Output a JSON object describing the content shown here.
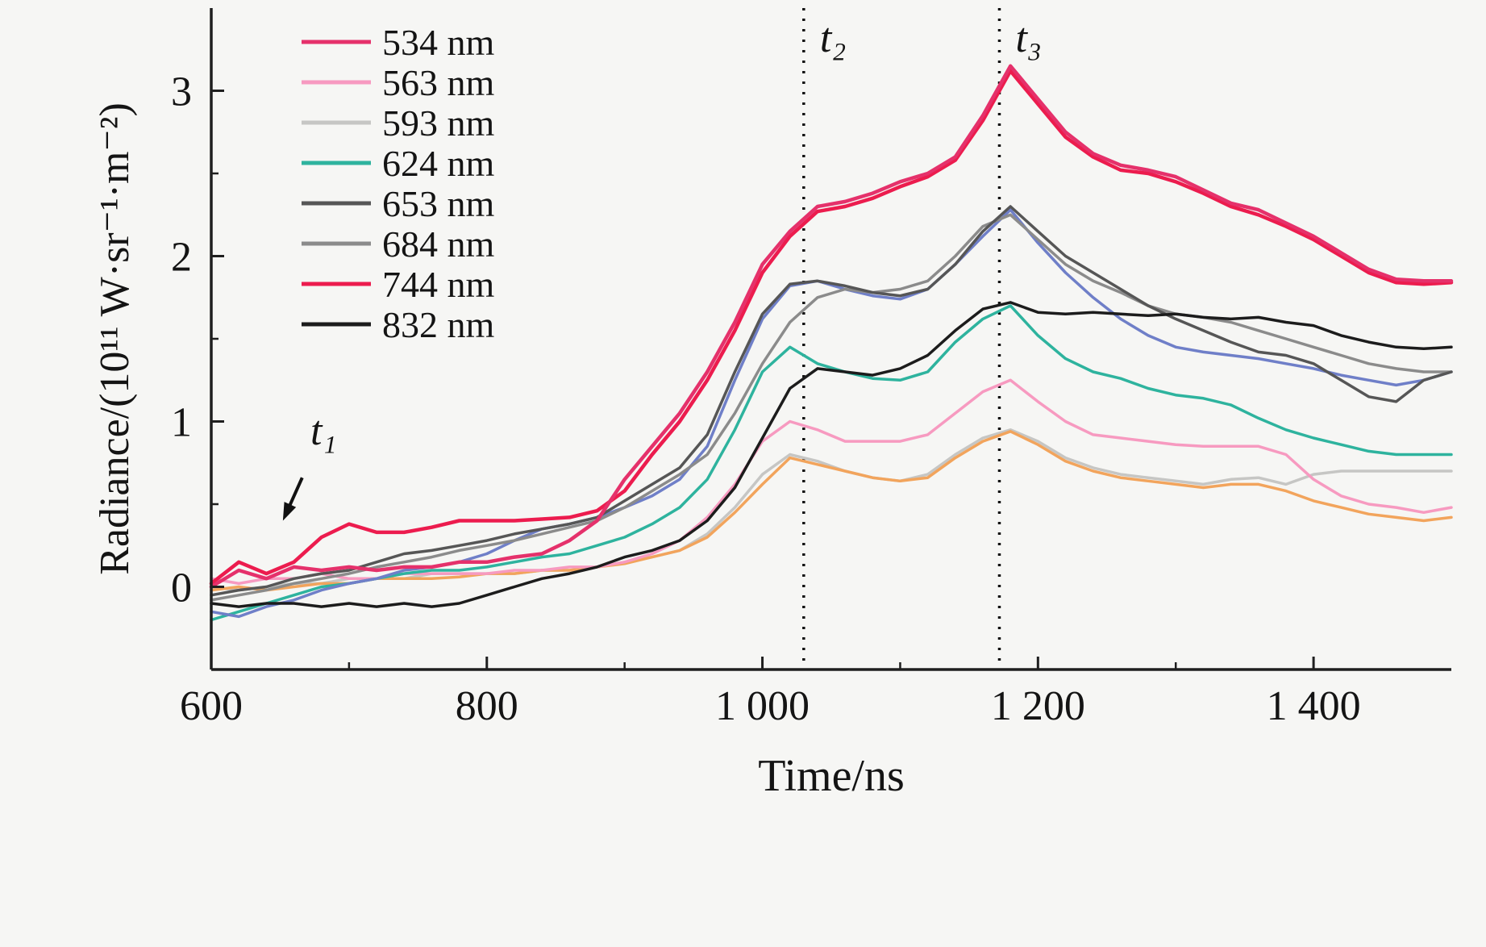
{
  "chart_data": {
    "type": "line",
    "title": "",
    "xlabel": "Time/ns",
    "ylabel": "Radiance/(10¹¹ W·sr⁻¹·m⁻²)",
    "xlim": [
      600,
      1500
    ],
    "ylim": [
      -0.5,
      3.5
    ],
    "grid": false,
    "legend_position": "top-left",
    "background": "#f6f6f4",
    "x_ticks": {
      "major": [
        600,
        800,
        1000,
        1200,
        1400
      ],
      "minor": [
        700,
        900,
        1100,
        1300
      ],
      "labels": [
        "600",
        "800",
        "1 000",
        "1 200",
        "1 400"
      ]
    },
    "y_ticks": {
      "major": [
        0,
        1,
        2,
        3
      ],
      "minor": [
        0.5,
        1.5,
        2.5
      ],
      "labels": [
        "0",
        "1",
        "2",
        "3"
      ]
    },
    "x": [
      600,
      620,
      640,
      660,
      680,
      700,
      720,
      740,
      760,
      780,
      800,
      820,
      840,
      860,
      880,
      900,
      920,
      940,
      960,
      980,
      1000,
      1020,
      1040,
      1060,
      1080,
      1100,
      1120,
      1140,
      1160,
      1180,
      1200,
      1220,
      1240,
      1260,
      1280,
      1300,
      1320,
      1340,
      1360,
      1380,
      1400,
      1420,
      1440,
      1460,
      1480,
      1500
    ],
    "draw_order": [
      2,
      9,
      1,
      3,
      8,
      5,
      4,
      7,
      6,
      0
    ],
    "series": [
      {
        "label": "534 nm",
        "color": "#e5316b",
        "width": 4.5,
        "values": [
          0.0,
          0.1,
          0.05,
          0.12,
          0.1,
          0.12,
          0.1,
          0.12,
          0.12,
          0.15,
          0.15,
          0.18,
          0.2,
          0.28,
          0.4,
          0.65,
          0.85,
          1.05,
          1.3,
          1.6,
          1.95,
          2.15,
          2.3,
          2.33,
          2.38,
          2.45,
          2.5,
          2.6,
          2.85,
          3.15,
          2.95,
          2.75,
          2.62,
          2.55,
          2.52,
          2.48,
          2.4,
          2.32,
          2.28,
          2.2,
          2.12,
          2.02,
          1.92,
          1.86,
          1.85,
          1.85
        ]
      },
      {
        "label": "563 nm",
        "color": "#f79ac0",
        "width": 3.5,
        "values": [
          0.05,
          0.02,
          0.05,
          0.05,
          0.08,
          0.05,
          0.05,
          0.08,
          0.08,
          0.08,
          0.08,
          0.1,
          0.1,
          0.12,
          0.12,
          0.15,
          0.2,
          0.28,
          0.42,
          0.62,
          0.88,
          1.0,
          0.95,
          0.88,
          0.88,
          0.88,
          0.92,
          1.05,
          1.18,
          1.25,
          1.12,
          1.0,
          0.92,
          0.9,
          0.88,
          0.86,
          0.85,
          0.85,
          0.85,
          0.8,
          0.65,
          0.55,
          0.5,
          0.48,
          0.45,
          0.48
        ]
      },
      {
        "label": "593 nm",
        "color": "#c6c6c4",
        "width": 3.5,
        "values": [
          0.0,
          -0.02,
          0.0,
          0.02,
          0.02,
          0.05,
          0.05,
          0.05,
          0.08,
          0.08,
          0.08,
          0.08,
          0.1,
          0.1,
          0.12,
          0.15,
          0.18,
          0.22,
          0.32,
          0.48,
          0.68,
          0.8,
          0.76,
          0.7,
          0.66,
          0.64,
          0.68,
          0.8,
          0.9,
          0.95,
          0.88,
          0.78,
          0.72,
          0.68,
          0.66,
          0.64,
          0.62,
          0.65,
          0.66,
          0.62,
          0.68,
          0.7,
          0.7,
          0.7,
          0.7,
          0.7
        ]
      },
      {
        "label": "624 nm",
        "color": "#2eb39e",
        "width": 3.5,
        "values": [
          -0.2,
          -0.15,
          -0.1,
          -0.05,
          0.0,
          0.02,
          0.05,
          0.08,
          0.1,
          0.1,
          0.12,
          0.15,
          0.18,
          0.2,
          0.25,
          0.3,
          0.38,
          0.48,
          0.65,
          0.95,
          1.3,
          1.45,
          1.35,
          1.3,
          1.26,
          1.25,
          1.3,
          1.48,
          1.62,
          1.7,
          1.52,
          1.38,
          1.3,
          1.26,
          1.2,
          1.16,
          1.14,
          1.1,
          1.02,
          0.95,
          0.9,
          0.86,
          0.82,
          0.8,
          0.8,
          0.8
        ]
      },
      {
        "label": "653 nm",
        "color": "#565656",
        "width": 3.5,
        "values": [
          -0.05,
          -0.02,
          0.0,
          0.05,
          0.08,
          0.1,
          0.15,
          0.2,
          0.22,
          0.25,
          0.28,
          0.32,
          0.35,
          0.38,
          0.42,
          0.52,
          0.62,
          0.72,
          0.92,
          1.3,
          1.65,
          1.83,
          1.85,
          1.82,
          1.78,
          1.76,
          1.8,
          1.95,
          2.15,
          2.3,
          2.15,
          2.0,
          1.9,
          1.8,
          1.7,
          1.62,
          1.55,
          1.48,
          1.42,
          1.4,
          1.35,
          1.25,
          1.15,
          1.12,
          1.25,
          1.3
        ]
      },
      {
        "label": "684 nm",
        "color": "#8b8b8b",
        "width": 3.5,
        "values": [
          -0.08,
          -0.05,
          -0.02,
          0.02,
          0.05,
          0.08,
          0.12,
          0.15,
          0.18,
          0.22,
          0.25,
          0.28,
          0.32,
          0.36,
          0.4,
          0.48,
          0.58,
          0.68,
          0.8,
          1.05,
          1.35,
          1.6,
          1.75,
          1.8,
          1.78,
          1.8,
          1.85,
          2.0,
          2.18,
          2.25,
          2.1,
          1.95,
          1.85,
          1.78,
          1.7,
          1.65,
          1.63,
          1.6,
          1.55,
          1.5,
          1.45,
          1.4,
          1.35,
          1.32,
          1.3,
          1.3
        ]
      },
      {
        "label": "744 nm",
        "color": "#ec1c4e",
        "width": 4.5,
        "values": [
          0.02,
          0.15,
          0.08,
          0.15,
          0.3,
          0.38,
          0.33,
          0.33,
          0.36,
          0.4,
          0.4,
          0.4,
          0.41,
          0.42,
          0.46,
          0.58,
          0.8,
          1.0,
          1.25,
          1.55,
          1.9,
          2.12,
          2.27,
          2.3,
          2.35,
          2.42,
          2.48,
          2.58,
          2.82,
          3.12,
          2.92,
          2.72,
          2.6,
          2.52,
          2.5,
          2.45,
          2.38,
          2.3,
          2.25,
          2.18,
          2.1,
          2.0,
          1.9,
          1.84,
          1.83,
          1.84
        ]
      },
      {
        "label": "832 nm",
        "color": "#1c1c1c",
        "width": 3.5,
        "values": [
          -0.1,
          -0.12,
          -0.1,
          -0.1,
          -0.12,
          -0.1,
          -0.12,
          -0.1,
          -0.12,
          -0.1,
          -0.05,
          0.0,
          0.05,
          0.08,
          0.12,
          0.18,
          0.22,
          0.28,
          0.4,
          0.6,
          0.9,
          1.2,
          1.32,
          1.3,
          1.28,
          1.32,
          1.4,
          1.55,
          1.68,
          1.72,
          1.66,
          1.65,
          1.66,
          1.65,
          1.64,
          1.65,
          1.63,
          1.62,
          1.63,
          1.6,
          1.58,
          1.52,
          1.48,
          1.45,
          1.44,
          1.45
        ]
      },
      {
        "label": "",
        "color": "#6f7fc8",
        "width": 3.5,
        "values": [
          -0.15,
          -0.18,
          -0.12,
          -0.08,
          -0.02,
          0.02,
          0.05,
          0.1,
          0.12,
          0.15,
          0.2,
          0.28,
          0.35,
          0.38,
          0.42,
          0.48,
          0.55,
          0.65,
          0.85,
          1.25,
          1.62,
          1.82,
          1.85,
          1.8,
          1.76,
          1.74,
          1.8,
          1.95,
          2.12,
          2.28,
          2.08,
          1.9,
          1.75,
          1.62,
          1.52,
          1.45,
          1.42,
          1.4,
          1.38,
          1.35,
          1.32,
          1.28,
          1.25,
          1.22,
          1.25,
          1.3
        ]
      },
      {
        "label": "",
        "color": "#f2a45c",
        "width": 3.5,
        "values": [
          -0.02,
          0.0,
          -0.02,
          0.0,
          0.02,
          0.02,
          0.05,
          0.05,
          0.05,
          0.06,
          0.08,
          0.08,
          0.1,
          0.1,
          0.12,
          0.14,
          0.18,
          0.22,
          0.3,
          0.45,
          0.62,
          0.78,
          0.74,
          0.7,
          0.66,
          0.64,
          0.66,
          0.78,
          0.88,
          0.94,
          0.86,
          0.76,
          0.7,
          0.66,
          0.64,
          0.62,
          0.6,
          0.62,
          0.62,
          0.58,
          0.52,
          0.48,
          0.44,
          0.42,
          0.4,
          0.42
        ]
      }
    ],
    "vlines": [
      {
        "id": "t2",
        "x": 1030,
        "style": "dotted"
      },
      {
        "id": "t3",
        "x": 1172,
        "style": "dotted"
      }
    ],
    "annotations": {
      "t1": {
        "label": "t₁",
        "text_x": 672,
        "text_y": 0.86,
        "arrow": {
          "x1": 666,
          "y1": 0.66,
          "x2": 652,
          "y2": 0.4
        }
      },
      "t2": {
        "label": "t₂",
        "x": 1030
      },
      "t3": {
        "label": "t₃",
        "x": 1172
      }
    }
  }
}
